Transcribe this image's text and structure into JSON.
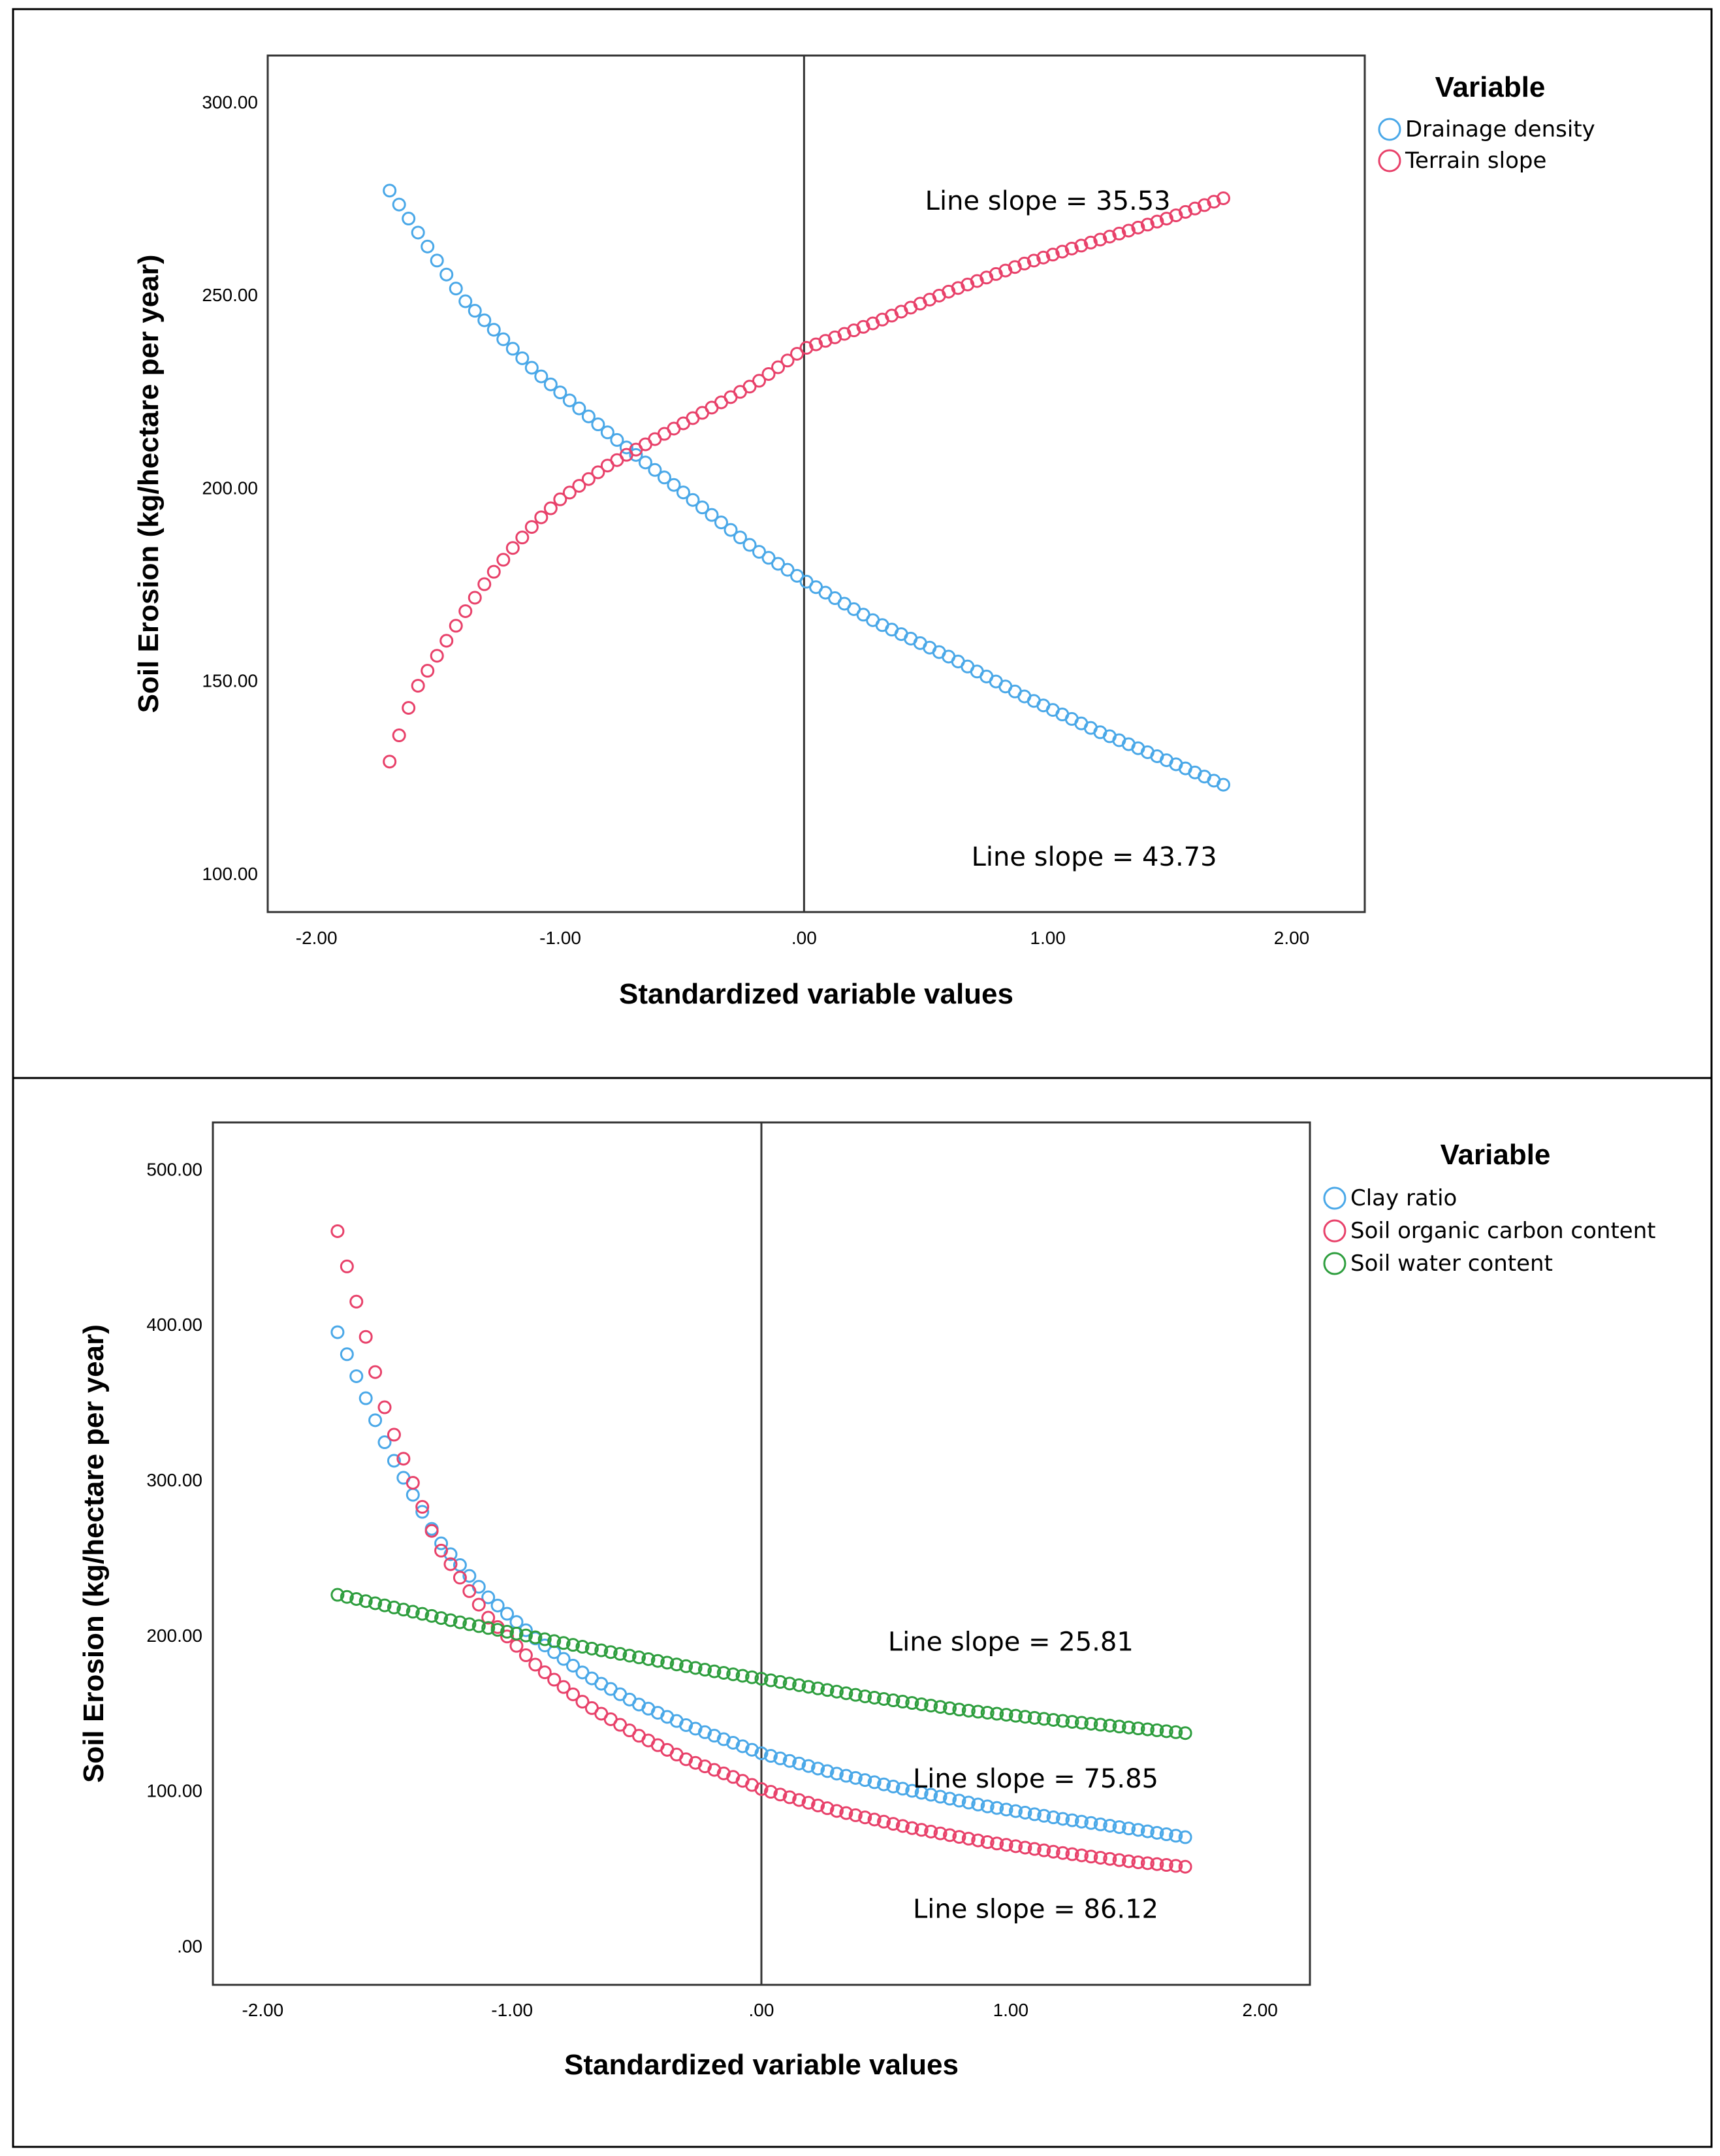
{
  "chart_data": [
    {
      "type": "scatter",
      "title": "",
      "xlabel": "Standardized variable values",
      "ylabel": "Soil Erosion (kg/hectare per year)",
      "xlim": [
        -2.2,
        2.3
      ],
      "ylim": [
        90,
        312
      ],
      "xticks": [
        -2,
        -1,
        0,
        1,
        2
      ],
      "xtick_labels": [
        "-2.00",
        "-1.00",
        ".00",
        "1.00",
        "2.00"
      ],
      "yticks": [
        100,
        150,
        200,
        250,
        300
      ],
      "ytick_labels": [
        "100.00",
        "150.00",
        "200.00",
        "250.00",
        "300.00"
      ],
      "reference_line_x": 0,
      "legend": {
        "title": "Variable",
        "placement": "right"
      },
      "series": [
        {
          "name": "Drainage density",
          "color": "#4aa8e8",
          "x": [
            -1.7,
            -1.4,
            -1.1,
            -0.8,
            -0.5,
            -0.2,
            0,
            0.3,
            0.6,
            0.9,
            1.2,
            1.5,
            1.72
          ],
          "y": [
            277,
            249,
            230,
            214,
            199,
            184,
            176,
            165,
            156,
            146,
            137,
            129,
            123
          ]
        },
        {
          "name": "Terrain slope",
          "color": "#e8416a",
          "x": [
            -1.7,
            -1.66,
            -1.6,
            -1.55,
            -1.5,
            -1.4,
            -1.3,
            -1.2,
            -1.1,
            -1.0,
            -0.8,
            -0.6,
            -0.4,
            -0.2,
            0,
            0.3,
            0.6,
            0.9,
            1.2,
            1.5,
            1.72
          ],
          "y": [
            129,
            136,
            147,
            152,
            157,
            167,
            176,
            184,
            191,
            197,
            206,
            213,
            220,
            227,
            236,
            243,
            251,
            258,
            264,
            270,
            275
          ]
        }
      ],
      "annotations": [
        {
          "text": "Line slope = 35.53",
          "x": 1.0,
          "y": 272
        },
        {
          "text": "Line slope = 43.73",
          "x": 1.19,
          "y": 102
        }
      ]
    },
    {
      "type": "scatter",
      "title": "",
      "xlabel": "Standardized variable values",
      "ylabel": "Soil Erosion (kg/hectare per year)",
      "xlim": [
        -2.2,
        2.2
      ],
      "ylim": [
        -25,
        530
      ],
      "xticks": [
        -2,
        -1,
        0,
        1,
        2
      ],
      "xtick_labels": [
        "-2.00",
        "-1.00",
        ".00",
        "1.00",
        "2.00"
      ],
      "yticks": [
        0,
        100,
        200,
        300,
        400,
        500
      ],
      "ytick_labels": [
        ".00",
        "100.00",
        "200.00",
        "300.00",
        "400.00",
        "500.00"
      ],
      "reference_line_x": 0,
      "legend": {
        "title": "Variable",
        "placement": "right"
      },
      "series": [
        {
          "name": "Clay ratio",
          "color": "#4aa8e8",
          "x": [
            -1.7,
            -1.5,
            -1.3,
            -1.1,
            -0.9,
            -0.7,
            -0.5,
            -0.3,
            -0.1,
            0,
            0.3,
            0.6,
            0.9,
            1.2,
            1.5,
            1.7
          ],
          "y": [
            395,
            320,
            262,
            225,
            197,
            174,
            156,
            142,
            130,
            124,
            111,
            100,
            90,
            82,
            75,
            70
          ]
        },
        {
          "name": "Soil organic carbon content",
          "color": "#e8416a",
          "x": [
            -1.7,
            -1.5,
            -1.3,
            -1.1,
            -0.9,
            -0.7,
            -0.5,
            -0.3,
            -0.1,
            0,
            0.3,
            0.6,
            0.9,
            1.2,
            1.5,
            1.7
          ],
          "y": [
            460,
            340,
            258,
            212,
            180,
            155,
            136,
            120,
            108,
            101,
            87,
            76,
            67,
            60,
            54,
            51
          ]
        },
        {
          "name": "Soil water content",
          "color": "#2e9e3e",
          "x": [
            -1.7,
            -1.2,
            -0.7,
            -0.2,
            0,
            0.4,
            0.8,
            1.2,
            1.7
          ],
          "y": [
            226,
            208,
            192,
            177,
            172,
            161,
            152,
            145,
            137
          ]
        }
      ],
      "annotations": [
        {
          "text": "Line slope = 25.81",
          "x": 1.0,
          "y": 190
        },
        {
          "text": "Line slope = 75.85",
          "x": 1.1,
          "y": 102
        },
        {
          "text": "Line slope = 86.12",
          "x": 1.1,
          "y": 18
        }
      ]
    }
  ]
}
